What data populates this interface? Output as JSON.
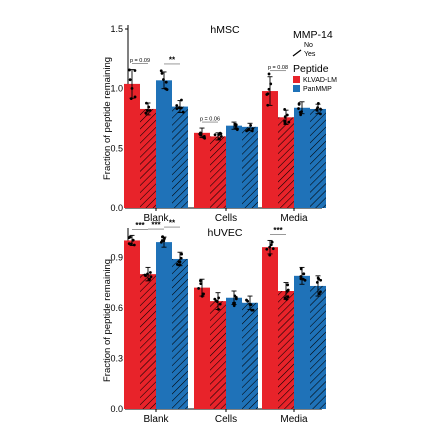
{
  "legend": {
    "mmp_title": "MMP-14",
    "mmp_items": [
      {
        "label": "No",
        "hatched": false
      },
      {
        "label": "Yes",
        "hatched": true
      }
    ],
    "peptide_title": "Peptide",
    "peptide_items": [
      {
        "label": "KLVAD-LM",
        "color": "#e8232a"
      },
      {
        "label": "PanMMP",
        "color": "#1f72b8"
      }
    ]
  },
  "colors": {
    "KLVAD-LM": "#e8232a",
    "PanMMP": "#1f72b8"
  },
  "chart_data": [
    {
      "type": "bar",
      "title": "hMSC",
      "ylabel": "Fraction of peptide remaining",
      "ylim": [
        0,
        1.5
      ],
      "yticks": [
        "0.0",
        "0.5",
        "1.0",
        "1.5"
      ],
      "categories": [
        "Blank",
        "Cells",
        "Media"
      ],
      "series": [
        {
          "peptide": "KLVAD-LM",
          "mmp14": "No",
          "values": [
            1.04,
            0.63,
            0.98
          ],
          "err": [
            0.12,
            0.04,
            0.12
          ]
        },
        {
          "peptide": "KLVAD-LM",
          "mmp14": "Yes",
          "values": [
            0.83,
            0.6,
            0.76
          ],
          "err": [
            0.05,
            0.03,
            0.06
          ]
        },
        {
          "peptide": "PanMMP",
          "mmp14": "No",
          "values": [
            1.07,
            0.69,
            0.84
          ],
          "err": [
            0.07,
            0.03,
            0.05
          ]
        },
        {
          "peptide": "PanMMP",
          "mmp14": "Yes",
          "values": [
            0.85,
            0.68,
            0.83
          ],
          "err": [
            0.05,
            0.03,
            0.04
          ]
        }
      ],
      "annotations": [
        {
          "category": "Blank",
          "from": 0,
          "to": 1,
          "label": "p = 0.09"
        },
        {
          "category": "Blank",
          "from": 2,
          "to": 3,
          "label": "**"
        },
        {
          "category": "Cells",
          "from": 0,
          "to": 1,
          "label": "p = 0.06"
        },
        {
          "category": "Media",
          "from": 0,
          "to": 1,
          "label": "p = 0.08"
        }
      ]
    },
    {
      "type": "bar",
      "title": "hUVEC",
      "ylabel": "Fraction of peptide remaining",
      "ylim": [
        0,
        1.05
      ],
      "yticks": [
        "0.0",
        "0.3",
        "0.6",
        "0.9"
      ],
      "categories": [
        "Blank",
        "Cells",
        "Media"
      ],
      "series": [
        {
          "peptide": "KLVAD-LM",
          "mmp14": "No",
          "values": [
            1.0,
            0.72,
            0.96
          ],
          "err": [
            0.03,
            0.05,
            0.04
          ]
        },
        {
          "peptide": "KLVAD-LM",
          "mmp14": "Yes",
          "values": [
            0.8,
            0.64,
            0.7
          ],
          "err": [
            0.04,
            0.05,
            0.05
          ]
        },
        {
          "peptide": "PanMMP",
          "mmp14": "No",
          "values": [
            0.99,
            0.66,
            0.79
          ],
          "err": [
            0.03,
            0.04,
            0.05
          ]
        },
        {
          "peptide": "PanMMP",
          "mmp14": "Yes",
          "values": [
            0.89,
            0.63,
            0.73
          ],
          "err": [
            0.04,
            0.04,
            0.06
          ]
        }
      ],
      "annotations": [
        {
          "category": "Blank",
          "from": 0,
          "to": 1,
          "label": "***"
        },
        {
          "category": "Blank",
          "from": 1,
          "to": 2,
          "label": "***"
        },
        {
          "category": "Blank",
          "from": 2,
          "to": 3,
          "label": "**"
        },
        {
          "category": "Media",
          "from": 0,
          "to": 1,
          "label": "***"
        }
      ]
    }
  ]
}
